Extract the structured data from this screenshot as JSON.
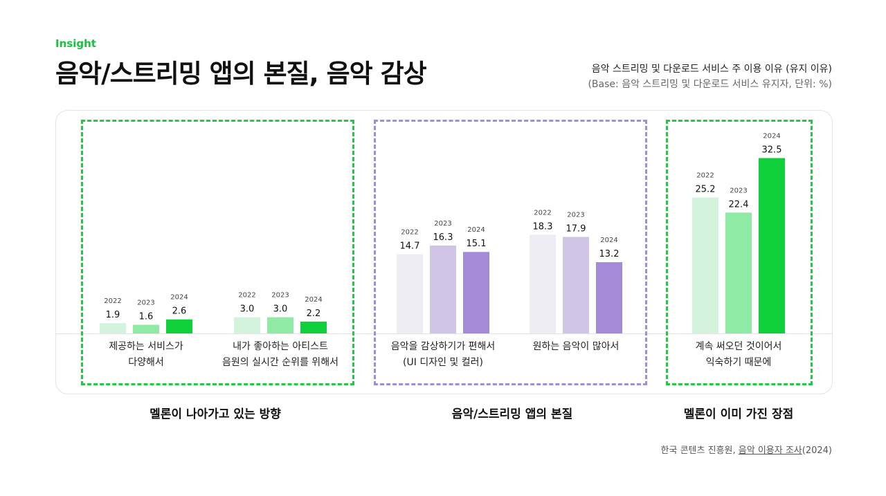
{
  "header": {
    "eyebrow": "Insight",
    "title": "음악/스트리밍 앱의 본질, 음악 감상",
    "subtitle": "음악 스트리밍 및 다운로드 서비스 주 이용 이유 (유지 이유)",
    "base_note": "(Base: 음악 스트리밍 및 다운로드 서비스 유지자, 단위: %)"
  },
  "groups": [
    {
      "title": "멜론이 나아가고 있는 방향",
      "color": "#22c944"
    },
    {
      "title": "음악/스트리밍 앱의 본질",
      "color": "#9f8fd6"
    },
    {
      "title": "멜론이 이미 가진 장점",
      "color": "#22c944"
    }
  ],
  "colors": {
    "green": [
      "#d4f3dc",
      "#8eeaa4",
      "#0fcf3a"
    ],
    "purple": [
      "#efedf4",
      "#d0c5e6",
      "#a48ad9"
    ]
  },
  "source": {
    "prefix": "한국 콘텐츠 진흥원, ",
    "link": "음악 이용자 조사",
    "suffix": "(2024)"
  },
  "chart_data": {
    "type": "bar",
    "series_names": [
      "2022",
      "2023",
      "2024"
    ],
    "categories": [
      "제공하는 서비스가\n다양해서",
      "내가 좋아하는 아티스트\n음원의 실시간 순위를 위해서",
      "음악을 감상하기가 편해서\n(UI 디자인 및 컬러)",
      "원하는 음악이 많아서",
      "계속 써오던 것이어서\n익숙하기 때문에"
    ],
    "series": [
      {
        "name": "2022",
        "values": [
          1.9,
          3.0,
          14.7,
          18.3,
          25.2
        ]
      },
      {
        "name": "2023",
        "values": [
          1.6,
          3.0,
          16.3,
          17.9,
          22.4
        ]
      },
      {
        "name": "2024",
        "values": [
          2.6,
          2.2,
          15.1,
          13.2,
          32.5
        ]
      }
    ],
    "category_palette": [
      "green",
      "green",
      "purple",
      "purple",
      "green"
    ],
    "ylabel": "",
    "unit": "%"
  }
}
